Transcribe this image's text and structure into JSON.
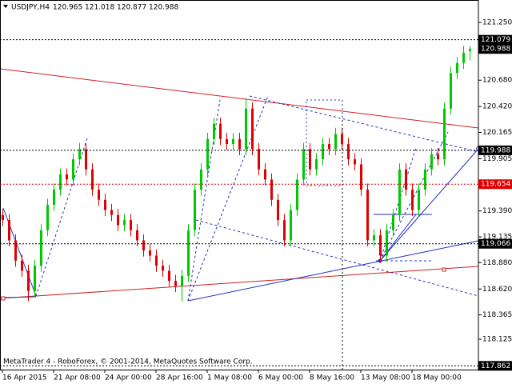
{
  "chart_data": {
    "type": "candlestick",
    "symbol": "USDJPY,H4",
    "footer": "MetaTrader 4 - RoboForex, © 2001-2014, MetaQuotes Software Corp.",
    "up_color": "#00c800",
    "down_color": "#e00000",
    "categories": [
      "16 Apr 2015",
      null,
      null,
      null,
      null,
      null,
      null,
      null,
      "21 Apr 08:00",
      null,
      null,
      null,
      null,
      null,
      null,
      null,
      "24 Apr 00:00",
      null,
      null,
      null,
      null,
      null,
      null,
      null,
      "28 Apr 16:00",
      null,
      null,
      null,
      null,
      null,
      null,
      null,
      "1 May 08:00",
      null,
      null,
      null,
      null,
      null,
      null,
      null,
      "6 May 00:00",
      null,
      null,
      null,
      null,
      null,
      null,
      null,
      "8 May 16:00",
      null,
      null,
      null,
      null,
      null,
      null,
      null,
      "13 May 08:00",
      null,
      null,
      null,
      null,
      null,
      null,
      null,
      "18 May 00:00",
      null,
      null,
      null,
      null,
      null,
      null,
      null,
      null,
      null
    ],
    "open": [
      119.35,
      119.3,
      119.1,
      118.9,
      118.8,
      118.6,
      118.85,
      119.2,
      119.45,
      119.6,
      119.75,
      119.7,
      119.9,
      120.0,
      119.8,
      119.6,
      119.5,
      119.4,
      119.35,
      119.25,
      119.3,
      119.2,
      119.1,
      119.0,
      118.95,
      118.85,
      118.8,
      118.7,
      118.65,
      118.75,
      119.2,
      119.6,
      119.8,
      120.1,
      120.25,
      120.1,
      120.05,
      120.1,
      120.0,
      120.4,
      120.0,
      119.8,
      119.7,
      119.5,
      119.3,
      119.1,
      119.4,
      119.7,
      120.0,
      119.8,
      119.9,
      120.05,
      120.0,
      120.15,
      120.05,
      119.9,
      119.85,
      119.6,
      119.1,
      119.15,
      118.95,
      119.2,
      119.35,
      119.8,
      119.6,
      119.4,
      119.6,
      119.8,
      119.95,
      119.9,
      120.4,
      120.75,
      120.85,
      120.965
    ],
    "high": [
      119.41,
      119.36,
      119.16,
      118.96,
      118.86,
      118.91,
      119.26,
      119.51,
      119.66,
      119.81,
      119.81,
      119.96,
      120.06,
      120.06,
      119.86,
      119.66,
      119.56,
      119.46,
      119.41,
      119.36,
      119.36,
      119.26,
      119.16,
      119.06,
      119.01,
      118.91,
      118.86,
      118.76,
      118.81,
      119.26,
      119.66,
      119.86,
      120.16,
      120.31,
      120.31,
      120.16,
      120.16,
      120.16,
      120.5,
      120.46,
      120.06,
      119.86,
      119.76,
      119.56,
      119.36,
      119.46,
      119.76,
      120.06,
      120.06,
      119.96,
      120.11,
      120.11,
      120.21,
      120.21,
      120.11,
      119.96,
      119.91,
      119.66,
      119.21,
      119.21,
      119.26,
      119.41,
      119.86,
      119.86,
      119.66,
      119.66,
      119.86,
      120.01,
      120.01,
      120.46,
      120.81,
      120.91,
      121.02,
      121.018
    ],
    "low": [
      119.24,
      119.04,
      118.84,
      118.74,
      118.5,
      118.54,
      118.79,
      119.14,
      119.39,
      119.54,
      119.64,
      119.64,
      119.84,
      119.74,
      119.54,
      119.44,
      119.34,
      119.29,
      119.19,
      119.19,
      119.14,
      119.04,
      118.94,
      118.89,
      118.79,
      118.74,
      118.64,
      118.59,
      118.5,
      118.69,
      119.14,
      119.54,
      119.74,
      120.04,
      120.04,
      119.99,
      119.99,
      119.94,
      119.94,
      119.94,
      119.74,
      119.64,
      119.44,
      119.24,
      119.04,
      119.04,
      119.34,
      119.64,
      119.74,
      119.74,
      119.84,
      119.94,
      119.94,
      119.99,
      119.84,
      119.79,
      119.54,
      119.04,
      119.04,
      118.89,
      118.89,
      119.14,
      119.29,
      119.54,
      119.34,
      119.34,
      119.54,
      119.74,
      119.84,
      119.84,
      120.34,
      120.69,
      120.79,
      120.877
    ],
    "close": [
      119.3,
      119.1,
      118.9,
      118.8,
      118.6,
      118.85,
      119.2,
      119.45,
      119.6,
      119.75,
      119.7,
      119.9,
      120.0,
      119.8,
      119.6,
      119.5,
      119.4,
      119.35,
      119.25,
      119.3,
      119.2,
      119.1,
      119.0,
      118.95,
      118.85,
      118.8,
      118.7,
      118.65,
      118.75,
      119.2,
      119.6,
      119.8,
      120.1,
      120.25,
      120.1,
      120.05,
      120.1,
      120.0,
      120.4,
      120.0,
      119.8,
      119.7,
      119.5,
      119.3,
      119.1,
      119.4,
      119.7,
      120.0,
      119.8,
      119.9,
      120.05,
      120.0,
      120.15,
      120.05,
      119.9,
      119.85,
      119.6,
      119.1,
      119.15,
      118.95,
      119.2,
      119.35,
      119.8,
      119.6,
      119.4,
      119.6,
      119.8,
      119.95,
      119.9,
      120.4,
      120.75,
      120.85,
      120.95,
      120.988
    ],
    "ylim": [
      117.825,
      121.471
    ],
    "yticks": [
      {
        "value": 121.25,
        "label": "121.250"
      },
      {
        "value": 120.68,
        "label": "120.680"
      },
      {
        "value": 120.42,
        "label": "120.420"
      },
      120.165,
      119.905,
      {
        "value": 119.39,
        "label": "119.390"
      },
      119.135,
      {
        "value": 118.88,
        "label": "118.880"
      },
      {
        "value": 118.62,
        "label": "118.620"
      },
      118.365,
      118.125
    ],
    "levels": [
      {
        "value": 121.079,
        "color": "#000000",
        "line": true
      },
      {
        "value": 120.988,
        "color": "#000000",
        "line": false
      },
      {
        "value": 119.988,
        "color": "#000000",
        "line": true
      },
      {
        "value": 119.654,
        "color": "#e00000",
        "line": true
      },
      {
        "value": 119.066,
        "color": "#000000",
        "line": true
      },
      {
        "value": 117.862,
        "color": "#000000",
        "line": true
      }
    ],
    "grid": false
  }
}
